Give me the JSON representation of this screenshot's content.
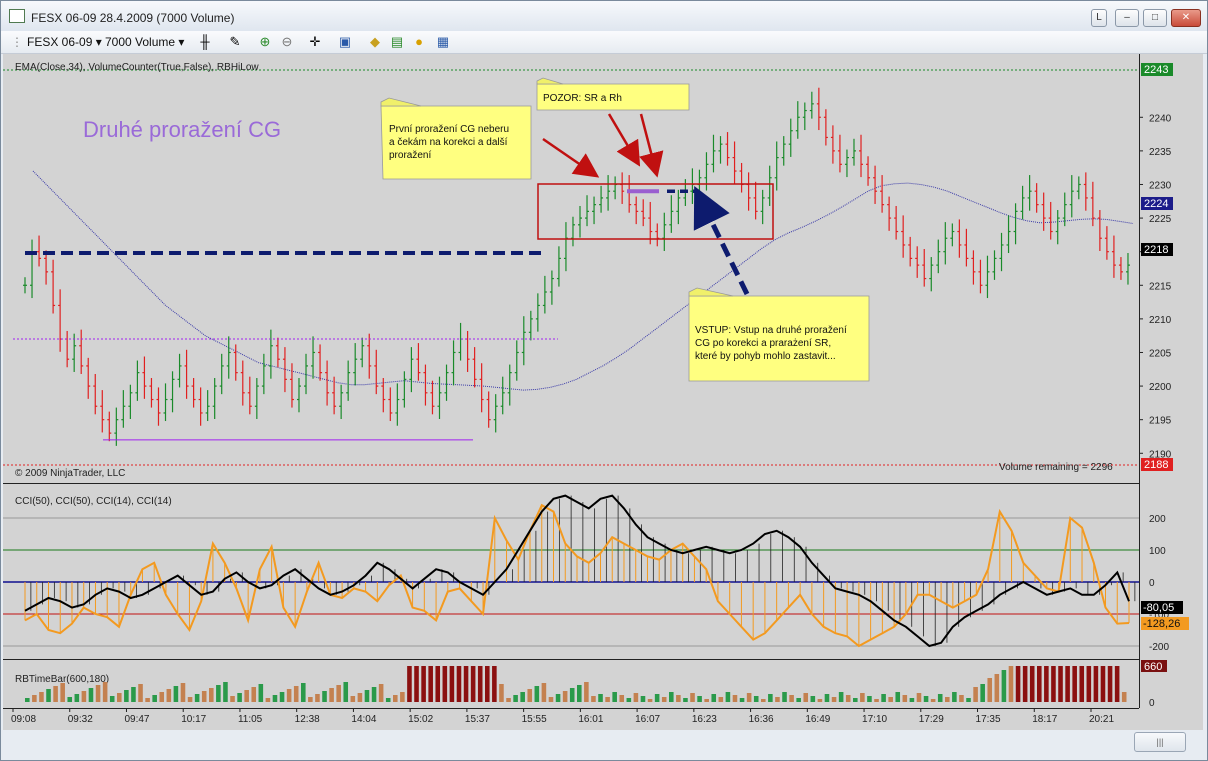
{
  "window": {
    "title": "FESX 06-09  28.4.2009 (7000 Volume)",
    "buttons": {
      "l": "L",
      "min": "–",
      "max": "□",
      "close": "✕"
    }
  },
  "toolbar": {
    "instrument": "FESX 06-09",
    "period": "7000 Volume",
    "icons": [
      "bar-type-icon",
      "drawing-tool-icon",
      "zoom-in-icon",
      "zoom-out-icon",
      "crosshair-icon",
      "properties-icon",
      "strategy-icon",
      "indicators-icon",
      "order-icon",
      "data-box-icon"
    ]
  },
  "price_panel": {
    "indicator_label": "EMA(Close,34), VolumeCounter(True,False), RBHiLow",
    "copyright": "© 2009 NinjaTrader, LLC",
    "volume_remaining": "Volume remaining = 2296",
    "title_annotation": "Druhé proražení CG",
    "note1": [
      "První proražení CG neberu",
      "a čekám na korekci a další",
      "proražení"
    ],
    "note2": "POZOR: SR a Rh",
    "note3": [
      "VSTUP: Vstup na druhé proražení",
      "CG po korekci a prarażení SR,",
      "které by pohyb mohlo zastavit..."
    ],
    "y_ticks": [
      "2240",
      "2235",
      "2230",
      "2225",
      "2220",
      "2215",
      "2210",
      "2205",
      "2200",
      "2195",
      "2190"
    ],
    "markers": {
      "top": "2243",
      "ema": "2224",
      "last": "2218",
      "bottom": "2188"
    },
    "colors": {
      "up": "#1a8a2a",
      "down": "#e02020",
      "ema": "#3a3aa8",
      "background": "#d3d3d3"
    }
  },
  "cci_panel": {
    "label": "CCI(50), CCI(50), CCI(14), CCI(14)",
    "y_ticks": [
      "200",
      "100",
      "0",
      "-100",
      "-200"
    ],
    "markers": {
      "cci50": "-80,05",
      "cci14": "-128,26"
    }
  },
  "volume_panel": {
    "label": "RBTimeBar(600,180)",
    "y_ticks": [
      "0"
    ],
    "marker": "660"
  },
  "x_ticks": [
    "09:08",
    "09:32",
    "09:47",
    "10:17",
    "11:05",
    "12:38",
    "14:04",
    "15:02",
    "15:37",
    "15:55",
    "16:01",
    "16:07",
    "16:23",
    "16:36",
    "16:49",
    "17:10",
    "17:29",
    "17:35",
    "18:17",
    "20:21"
  ],
  "chart_data": {
    "type": "candlestick",
    "symbol": "FESX 06-09",
    "bar_period": "7000 Volume",
    "ylim": [
      2188,
      2244
    ],
    "closes": [
      2215,
      2220,
      2219,
      2217,
      2212,
      2207,
      2204,
      2206,
      2203,
      2200,
      2197,
      2195,
      2193,
      2195,
      2197,
      2199,
      2202,
      2200,
      2198,
      2196,
      2198,
      2201,
      2203,
      2200,
      2198,
      2196,
      2197,
      2200,
      2203,
      2205,
      2202,
      2199,
      2197,
      2200,
      2203,
      2206,
      2204,
      2201,
      2198,
      2200,
      2203,
      2205,
      2202,
      2199,
      2197,
      2199,
      2202,
      2204,
      2206,
      2203,
      2200,
      2198,
      2196,
      2198,
      2201,
      2204,
      2202,
      2199,
      2197,
      2199,
      2202,
      2205,
      2207,
      2204,
      2201,
      2198,
      2195,
      2197,
      2199,
      2202,
      2205,
      2208,
      2210,
      2212,
      2214,
      2216,
      2219,
      2222,
      2224,
      2225,
      2226,
      2227,
      2228,
      2229,
      2230,
      2229,
      2227,
      2226,
      2225,
      2223,
      2222,
      2224,
      2226,
      2228,
      2229,
      2230,
      2231,
      2233,
      2235,
      2236,
      2234,
      2232,
      2230,
      2228,
      2226,
      2228,
      2231,
      2234,
      2236,
      2238,
      2240,
      2241,
      2242,
      2240,
      2237,
      2235,
      2233,
      2234,
      2235,
      2233,
      2231,
      2229,
      2227,
      2225,
      2223,
      2221,
      2219,
      2218,
      2216,
      2218,
      2220,
      2222,
      2223,
      2221,
      2219,
      2217,
      2215,
      2217,
      2219,
      2221,
      2223,
      2226,
      2228,
      2229,
      2227,
      2225,
      2223,
      2225,
      2227,
      2229,
      2230,
      2228,
      2225,
      2222,
      2220,
      2218,
      2217,
      2218
    ],
    "ema34": [
      2232,
      2230,
      2228,
      2226,
      2224,
      2222,
      2220,
      2218,
      2216,
      2214,
      2212,
      2210.5,
      2209,
      2207.5,
      2206.5,
      2205.5,
      2204.5,
      2203.5,
      2203,
      2202.5,
      2202,
      2201.5,
      2201,
      2200.5,
      2200.2,
      2200.2,
      2200.4,
      2200.6,
      2200.8,
      2200.6,
      2200.4,
      2200.3,
      2200.2,
      2200.1,
      2200,
      2199.8,
      2199.6,
      2199.4,
      2199.5,
      2199.8,
      2200.3,
      2201,
      2202,
      2203,
      2204.2,
      2205.5,
      2207,
      2208.5,
      2210,
      2211.5,
      2213,
      2214.5,
      2216,
      2217.5,
      2219,
      2220.5,
      2221.8,
      2222.8,
      2223.6,
      2224.5,
      2225.5,
      2226.6,
      2227.8,
      2229,
      2229.8,
      2230.1,
      2230.2,
      2230,
      2229.6,
      2229,
      2228.2,
      2227.4,
      2226.6,
      2225.8,
      2225.1,
      2224.6,
      2224.3,
      2224.4,
      2224.6,
      2224.8,
      2224.9,
      2224.8,
      2224.5,
      2224.2
    ],
    "levels": [
      {
        "price": 2219.8,
        "style": "dashed",
        "color": "#0d1b6e"
      },
      {
        "price": 2207,
        "style": "dotted",
        "color": "#a020f0"
      },
      {
        "price": 2192,
        "style": "solid",
        "color": "#a020f0"
      },
      {
        "price": 2229,
        "style": "solid",
        "color": "#9a5ed0"
      },
      {
        "price": 2229,
        "style": "dashed",
        "color": "#0d1b6e"
      }
    ],
    "cci": {
      "ylim": [
        -270,
        300
      ],
      "cci50": [
        -90,
        -70,
        -50,
        -60,
        -80,
        -70,
        -40,
        -20,
        -30,
        -50,
        -40,
        -20,
        0,
        20,
        -10,
        -40,
        -30,
        10,
        30,
        0,
        -20,
        -10,
        20,
        40,
        10,
        -20,
        -40,
        -30,
        -10,
        20,
        60,
        40,
        10,
        -20,
        10,
        40,
        30,
        0,
        -20,
        -40,
        0,
        40,
        100,
        160,
        220,
        260,
        270,
        250,
        230,
        260,
        270,
        230,
        180,
        140,
        120,
        100,
        90,
        100,
        110,
        100,
        90,
        100,
        120,
        150,
        160,
        140,
        110,
        60,
        20,
        -20,
        -30,
        -40,
        -60,
        -90,
        -120,
        -140,
        -170,
        -200,
        -190,
        -140,
        -110,
        -90,
        -70,
        -40,
        -20,
        0,
        -20,
        -40,
        -30,
        -20,
        -40,
        -40,
        -10,
        30,
        -60,
        -80
      ],
      "cci14": [
        -120,
        -100,
        -150,
        -160,
        -130,
        -80,
        -100,
        -110,
        -140,
        -40,
        40,
        60,
        -40,
        -100,
        -150,
        -60,
        120,
        60,
        -20,
        -120,
        40,
        110,
        -80,
        -140,
        -30,
        60,
        -40,
        -50,
        -20,
        -30,
        -60,
        -10,
        20,
        -80,
        -90,
        -120,
        -30,
        -20,
        -60,
        -100,
        200,
        130,
        70,
        160,
        240,
        220,
        120,
        80,
        60,
        90,
        140,
        120,
        100,
        80,
        70,
        100,
        120,
        80,
        40,
        -60,
        -100,
        -140,
        -180,
        -160,
        -120,
        -80,
        -40,
        -100,
        -140,
        -160,
        -170,
        -200,
        -180,
        -160,
        -140,
        -100,
        -40,
        -40,
        -60,
        -80,
        -60,
        -40,
        40,
        220,
        160,
        60,
        20,
        -20,
        -30,
        200,
        170,
        60,
        -80,
        -130,
        -128
      ]
    },
    "volume_bars": {
      "description": "RBTimeBar(600,180)",
      "ymax": 660,
      "up_color": "#2a9a4a",
      "down_color": "#c48150",
      "highlight_color": "#8b1010"
    }
  }
}
